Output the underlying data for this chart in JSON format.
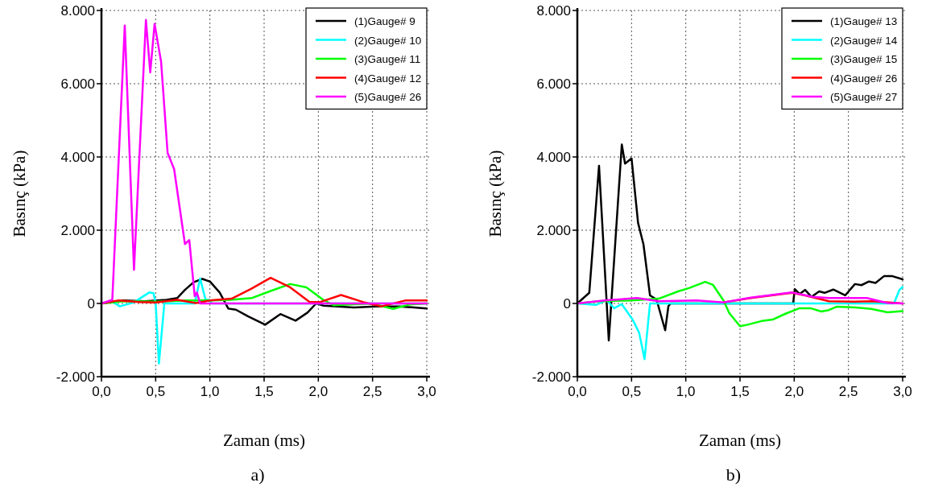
{
  "chart_data": [
    {
      "type": "line",
      "xlabel": "Zaman (ms)",
      "ylabel": "Basınç (kPa)",
      "annotations": [
        "a)"
      ],
      "xlim": [
        0,
        3.0
      ],
      "ylim": [
        -2000,
        8000
      ],
      "xticks": [
        {
          "value": 0,
          "label": "0,0"
        },
        {
          "value": 0.5,
          "label": "0,5"
        },
        {
          "value": 1,
          "label": "1,0"
        },
        {
          "value": 1.5,
          "label": "1,5"
        },
        {
          "value": 2,
          "label": "2,0"
        },
        {
          "value": 2.5,
          "label": "2,5"
        },
        {
          "value": 3,
          "label": "3,0"
        }
      ],
      "yticks": [
        {
          "value": -2000,
          "label": "-2.000"
        },
        0,
        {
          "value": 2000,
          "label": "2.000"
        },
        {
          "value": 4000,
          "label": "4.000"
        },
        {
          "value": 6000,
          "label": "6.000"
        },
        {
          "value": 8000,
          "label": "8.000"
        }
      ],
      "grid": true,
      "legend": "top right",
      "series": [
        {
          "name": "(1)Gauge# 9",
          "color": "#000000",
          "x": [
            0,
            0.2,
            0.4,
            0.6,
            0.7,
            0.77,
            0.85,
            0.93,
            1.0,
            1.09,
            1.17,
            1.24,
            1.35,
            1.51,
            1.65,
            1.79,
            1.9,
            1.98,
            2.05,
            2.33,
            2.53,
            2.75,
            3.0
          ],
          "values": [
            0,
            80,
            60,
            100,
            150,
            370,
            580,
            670,
            600,
            300,
            -140,
            -170,
            -350,
            -580,
            -290,
            -470,
            -250,
            0,
            -60,
            -110,
            -80,
            -80,
            -140
          ]
        },
        {
          "name": "(2)Gauge# 10",
          "color": "#00ffff",
          "x": [
            0,
            0.1,
            0.17,
            0.3,
            0.44,
            0.48,
            0.5,
            0.53,
            0.58,
            0.86,
            0.91,
            0.96,
            0.99,
            1.02,
            3.0
          ],
          "values": [
            0,
            50,
            -80,
            30,
            300,
            280,
            0,
            -1640,
            0,
            0,
            680,
            100,
            100,
            0,
            0
          ]
        },
        {
          "name": "(3)Gauge# 11",
          "color": "#00ff00",
          "x": [
            0,
            0.2,
            0.5,
            0.8,
            1.0,
            1.19,
            1.39,
            1.55,
            1.74,
            1.89,
            2.04,
            2.14,
            2.49,
            2.69,
            2.84,
            3.0
          ],
          "values": [
            0,
            60,
            50,
            80,
            80,
            100,
            150,
            330,
            530,
            440,
            110,
            -50,
            0,
            -150,
            -30,
            0
          ]
        },
        {
          "name": "(4)Gauge# 12",
          "color": "#ff0000",
          "x": [
            0,
            0.15,
            0.35,
            0.5,
            0.7,
            0.87,
            1.0,
            1.2,
            1.38,
            1.56,
            1.74,
            1.92,
            2.02,
            2.21,
            2.41,
            2.58,
            2.8,
            3.0
          ],
          "values": [
            0,
            80,
            40,
            30,
            100,
            10,
            80,
            130,
            400,
            700,
            440,
            40,
            40,
            230,
            40,
            -80,
            80,
            80
          ]
        },
        {
          "name": "(5)Gauge# 26",
          "color": "#ff00ff",
          "x": [
            0,
            0.1,
            0.215,
            0.3,
            0.41,
            0.45,
            0.49,
            0.55,
            0.61,
            0.67,
            0.77,
            0.81,
            0.86,
            0.88,
            0.91,
            3.0
          ],
          "values": [
            0,
            100,
            7590,
            920,
            7740,
            6310,
            7630,
            6600,
            4110,
            3670,
            1620,
            1730,
            200,
            300,
            0,
            0
          ]
        }
      ]
    },
    {
      "type": "line",
      "xlabel": "Zaman (ms)",
      "ylabel": "Basınç (kPa)",
      "annotations": [
        "b)"
      ],
      "xlim": [
        0,
        3.0
      ],
      "ylim": [
        -2000,
        8000
      ],
      "xticks": [
        {
          "value": 0,
          "label": "0,0"
        },
        {
          "value": 0.5,
          "label": "0,5"
        },
        {
          "value": 1,
          "label": "1,0"
        },
        {
          "value": 1.5,
          "label": "1,5"
        },
        {
          "value": 2,
          "label": "2,0"
        },
        {
          "value": 2.5,
          "label": "2,5"
        },
        {
          "value": 3,
          "label": "3,0"
        }
      ],
      "yticks": [
        {
          "value": -2000,
          "label": "-2.000"
        },
        0,
        {
          "value": 2000,
          "label": "2.000"
        },
        {
          "value": 4000,
          "label": "4.000"
        },
        {
          "value": 6000,
          "label": "6.000"
        },
        {
          "value": 8000,
          "label": "8.000"
        }
      ],
      "grid": true,
      "legend": "top right",
      "series": [
        {
          "name": "(1)Gauge# 13",
          "color": "#000000",
          "x": [
            0,
            0.11,
            0.2,
            0.29,
            0.41,
            0.44,
            0.5,
            0.56,
            0.61,
            0.67,
            0.73,
            0.81,
            0.84,
            0.86,
            1.99,
            2.005,
            2.05,
            2.1,
            2.16,
            2.23,
            2.28,
            2.36,
            2.47,
            2.56,
            2.62,
            2.69,
            2.75,
            2.83,
            2.9,
            3.0
          ],
          "values": [
            0,
            290,
            3760,
            -1010,
            4340,
            3820,
            3960,
            2200,
            1610,
            220,
            110,
            -730,
            -70,
            0,
            0,
            390,
            260,
            370,
            180,
            330,
            290,
            380,
            220,
            530,
            500,
            600,
            560,
            750,
            750,
            660
          ]
        },
        {
          "name": "(2)Gauge# 14",
          "color": "#00ffff",
          "x": [
            0,
            0.17,
            0.27,
            0.34,
            0.41,
            0.51,
            0.57,
            0.62,
            0.67,
            2.92,
            2.97,
            3.0
          ],
          "values": [
            0,
            -40,
            90,
            -130,
            -20,
            -440,
            -800,
            -1520,
            0,
            0,
            370,
            450
          ]
        },
        {
          "name": "(3)Gauge# 15",
          "color": "#00ff00",
          "x": [
            0,
            0.2,
            0.5,
            0.75,
            0.93,
            1.03,
            1.18,
            1.25,
            1.35,
            1.4,
            1.5,
            1.57,
            1.7,
            1.8,
            1.92,
            2.05,
            2.15,
            2.25,
            2.32,
            2.39,
            2.57,
            2.71,
            2.86,
            3.0
          ],
          "values": [
            0,
            60,
            80,
            130,
            330,
            420,
            590,
            510,
            70,
            -260,
            -620,
            -580,
            -480,
            -440,
            -280,
            -130,
            -130,
            -220,
            -180,
            -90,
            -110,
            -150,
            -240,
            -210
          ]
        },
        {
          "name": "(4)Gauge# 26",
          "color": "#ff0000",
          "x": [
            1.35,
            1.6,
            1.98,
            2.1,
            2.32,
            2.55,
            2.72,
            3.0
          ],
          "values": [
            30,
            150,
            290,
            220,
            60,
            50,
            60,
            0
          ]
        },
        {
          "name": "(5)Gauge# 27",
          "color": "#ff00ff",
          "x": [
            0,
            0.25,
            0.55,
            0.75,
            1.1,
            1.35,
            1.6,
            1.98,
            2.17,
            2.32,
            2.67,
            2.86,
            3.0
          ],
          "values": [
            0,
            80,
            150,
            60,
            80,
            30,
            160,
            300,
            180,
            150,
            150,
            10,
            0
          ]
        }
      ]
    }
  ]
}
